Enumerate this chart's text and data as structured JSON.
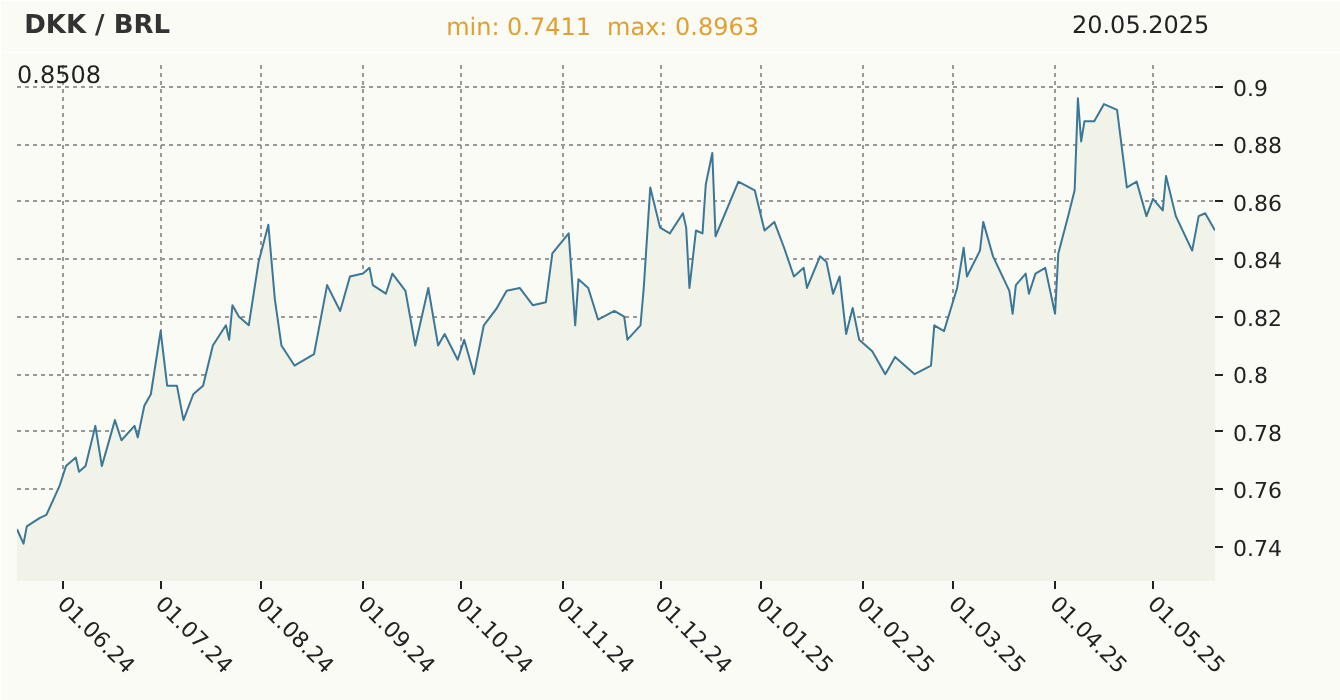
{
  "chart_data": {
    "type": "area",
    "title": "DKK / BRL",
    "annotations": [
      "min: 0.7411",
      "max: 0.8963",
      "20.05.2025",
      "0.8508"
    ],
    "x": [
      "2024-05-18",
      "2024-05-20",
      "2024-05-21",
      "2024-05-25",
      "2024-05-27",
      "2024-05-31",
      "2024-06-02",
      "2024-06-05",
      "2024-06-06",
      "2024-06-08",
      "2024-06-11",
      "2024-06-13",
      "2024-06-17",
      "2024-06-19",
      "2024-06-23",
      "2024-06-24",
      "2024-06-26",
      "2024-06-28",
      "2024-07-01",
      "2024-07-03",
      "2024-07-06",
      "2024-07-08",
      "2024-07-11",
      "2024-07-14",
      "2024-07-17",
      "2024-07-21",
      "2024-07-22",
      "2024-07-23",
      "2024-07-25",
      "2024-07-28",
      "2024-07-31",
      "2024-08-03",
      "2024-08-05",
      "2024-08-07",
      "2024-08-11",
      "2024-08-17",
      "2024-08-21",
      "2024-08-25",
      "2024-08-28",
      "2024-09-01",
      "2024-09-03",
      "2024-09-04",
      "2024-09-08",
      "2024-09-10",
      "2024-09-14",
      "2024-09-17",
      "2024-09-21",
      "2024-09-24",
      "2024-09-26",
      "2024-09-30",
      "2024-10-02",
      "2024-10-05",
      "2024-10-08",
      "2024-10-12",
      "2024-10-15",
      "2024-10-19",
      "2024-10-23",
      "2024-10-27",
      "2024-10-29",
      "2024-11-03",
      "2024-11-05",
      "2024-11-06",
      "2024-11-09",
      "2024-11-12",
      "2024-11-17",
      "2024-11-20",
      "2024-11-21",
      "2024-11-25",
      "2024-11-26",
      "2024-11-28",
      "2024-12-01",
      "2024-12-04",
      "2024-12-08",
      "2024-12-09",
      "2024-12-10",
      "2024-12-12",
      "2024-12-14",
      "2024-12-15",
      "2024-12-17",
      "2024-12-18",
      "2024-12-25",
      "2024-12-30",
      "2025-01-02",
      "2025-01-05",
      "2025-01-08",
      "2025-01-11",
      "2025-01-14",
      "2025-01-15",
      "2025-01-19",
      "2025-01-21",
      "2025-01-23",
      "2025-01-25",
      "2025-01-27",
      "2025-01-29",
      "2025-01-31",
      "2025-02-04",
      "2025-02-08",
      "2025-02-11",
      "2025-02-17",
      "2025-02-22",
      "2025-02-23",
      "2025-02-26",
      "2025-03-02",
      "2025-03-04",
      "2025-03-05",
      "2025-03-09",
      "2025-03-10",
      "2025-03-13",
      "2025-03-18",
      "2025-03-19",
      "2025-03-20",
      "2025-03-23",
      "2025-03-24",
      "2025-03-26",
      "2025-03-29",
      "2025-04-01",
      "2025-04-02",
      "2025-04-05",
      "2025-04-07",
      "2025-04-08",
      "2025-04-09",
      "2025-04-10",
      "2025-04-13",
      "2025-04-16",
      "2025-04-20",
      "2025-04-23",
      "2025-04-26",
      "2025-04-29",
      "2025-05-01",
      "2025-05-04",
      "2025-05-05",
      "2025-05-08",
      "2025-05-13",
      "2025-05-15",
      "2025-05-17",
      "2025-05-20"
    ],
    "series": [
      {
        "color": "#3b7797",
        "values": [
          0.746,
          0.741,
          0.747,
          0.75,
          0.751,
          0.761,
          0.768,
          0.771,
          0.766,
          0.768,
          0.782,
          0.768,
          0.784,
          0.777,
          0.782,
          0.778,
          0.789,
          0.793,
          0.815,
          0.796,
          0.796,
          0.784,
          0.793,
          0.796,
          0.81,
          0.817,
          0.812,
          0.824,
          0.82,
          0.817,
          0.839,
          0.852,
          0.826,
          0.81,
          0.803,
          0.807,
          0.831,
          0.822,
          0.834,
          0.835,
          0.837,
          0.831,
          0.828,
          0.835,
          0.829,
          0.81,
          0.83,
          0.81,
          0.814,
          0.805,
          0.812,
          0.8,
          0.817,
          0.823,
          0.829,
          0.83,
          0.824,
          0.825,
          0.842,
          0.849,
          0.817,
          0.833,
          0.83,
          0.819,
          0.822,
          0.82,
          0.812,
          0.817,
          0.83,
          0.865,
          0.851,
          0.849,
          0.856,
          0.851,
          0.83,
          0.85,
          0.849,
          0.866,
          0.877,
          0.848,
          0.867,
          0.864,
          0.85,
          0.853,
          0.844,
          0.834,
          0.837,
          0.83,
          0.841,
          0.839,
          0.828,
          0.834,
          0.814,
          0.823,
          0.812,
          0.808,
          0.8,
          0.806,
          0.8,
          0.803,
          0.817,
          0.815,
          0.83,
          0.844,
          0.834,
          0.843,
          0.853,
          0.841,
          0.829,
          0.821,
          0.831,
          0.835,
          0.828,
          0.835,
          0.837,
          0.821,
          0.842,
          0.855,
          0.864,
          0.896,
          0.881,
          0.888,
          0.888,
          0.894,
          0.892,
          0.865,
          0.867,
          0.855,
          0.861,
          0.857,
          0.869,
          0.855,
          0.843,
          0.855,
          0.856,
          0.85
        ]
      }
    ],
    "xlim": [
      "2024-05-18",
      "2025-05-20"
    ],
    "xticks": [
      {
        "value": "2024-06-01",
        "label": "01.06.24"
      },
      {
        "value": "2024-07-01",
        "label": "01.07.24"
      },
      {
        "value": "2024-08-01",
        "label": "01.08.24"
      },
      {
        "value": "2024-09-01",
        "label": "01.09.24"
      },
      {
        "value": "2024-10-01",
        "label": "01.10.24"
      },
      {
        "value": "2024-11-01",
        "label": "01.11.24"
      },
      {
        "value": "2024-12-01",
        "label": "01.12.24"
      },
      {
        "value": "2025-01-01",
        "label": "01.01.25"
      },
      {
        "value": "2025-02-01",
        "label": "01.02.25"
      },
      {
        "value": "2025-03-01",
        "label": "01.03.25"
      },
      {
        "value": "2025-04-01",
        "label": "01.04.25"
      },
      {
        "value": "2025-05-01",
        "label": "01.05.25"
      }
    ],
    "ylim": [
      0.728,
      0.909
    ],
    "yticks": [
      0.74,
      0.76,
      0.78,
      0.8,
      0.82,
      0.84,
      0.86,
      0.88,
      0.9
    ],
    "grid": true
  }
}
